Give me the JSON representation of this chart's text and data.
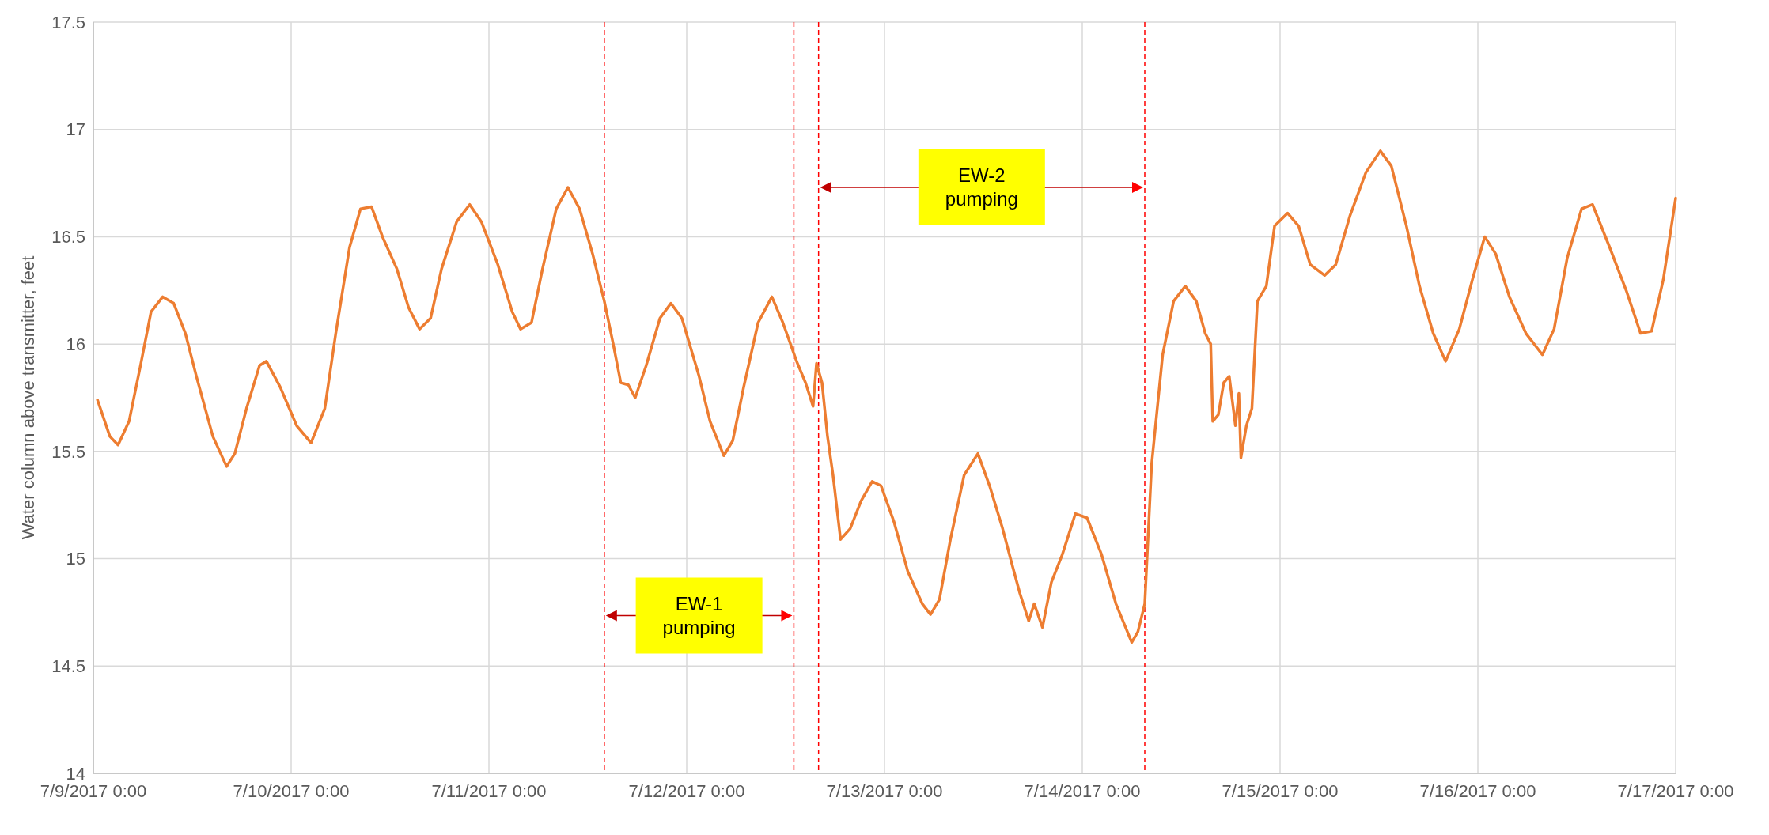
{
  "chart_data": {
    "type": "line",
    "ylabel": "Water column above transmitter, feet",
    "xlim": [
      "2017-07-09T00:00",
      "2017-07-17T00:00"
    ],
    "xticks": [
      {
        "value": "2017-07-09T00:00",
        "label": "7/9/2017 0:00"
      },
      {
        "value": "2017-07-10T00:00",
        "label": "7/10/2017 0:00"
      },
      {
        "value": "2017-07-11T00:00",
        "label": "7/11/2017 0:00"
      },
      {
        "value": "2017-07-12T00:00",
        "label": "7/12/2017 0:00"
      },
      {
        "value": "2017-07-13T00:00",
        "label": "7/13/2017 0:00"
      },
      {
        "value": "2017-07-14T00:00",
        "label": "7/14/2017 0:00"
      },
      {
        "value": "2017-07-15T00:00",
        "label": "7/15/2017 0:00"
      },
      {
        "value": "2017-07-16T00:00",
        "label": "7/16/2017 0:00"
      },
      {
        "value": "2017-07-17T00:00",
        "label": "7/17/2017 0:00"
      }
    ],
    "ylim": [
      14,
      17.5
    ],
    "yticks": [
      14,
      14.5,
      15,
      15.5,
      16,
      16.5,
      17,
      17.5
    ],
    "grid": true,
    "marker": "none",
    "line_style": "solid",
    "x": [
      "2017-07-09T00:30",
      "2017-07-09T02:00",
      "2017-07-09T03:00",
      "2017-07-09T04:20",
      "2017-07-09T05:40",
      "2017-07-09T07:00",
      "2017-07-09T08:25",
      "2017-07-09T09:45",
      "2017-07-09T11:10",
      "2017-07-09T12:30",
      "2017-07-09T14:30",
      "2017-07-09T16:10",
      "2017-07-09T17:10",
      "2017-07-09T18:35",
      "2017-07-09T20:10",
      "2017-07-09T21:00",
      "2017-07-09T22:40",
      "2017-07-10T00:40",
      "2017-07-10T02:25",
      "2017-07-10T04:05",
      "2017-07-10T05:25",
      "2017-07-10T07:05",
      "2017-07-10T08:25",
      "2017-07-10T09:45",
      "2017-07-10T11:05",
      "2017-07-10T12:50",
      "2017-07-10T14:15",
      "2017-07-10T15:35",
      "2017-07-10T16:55",
      "2017-07-10T18:15",
      "2017-07-10T20:05",
      "2017-07-10T21:40",
      "2017-07-10T23:05",
      "2017-07-11T01:05",
      "2017-07-11T02:50",
      "2017-07-11T03:50",
      "2017-07-11T05:10",
      "2017-07-11T06:30",
      "2017-07-11T08:10",
      "2017-07-11T09:35",
      "2017-07-11T11:00",
      "2017-07-11T12:35",
      "2017-07-11T14:00",
      "2017-07-11T15:05",
      "2017-07-11T16:00",
      "2017-07-11T16:55",
      "2017-07-11T17:45",
      "2017-07-11T19:05",
      "2017-07-11T20:45",
      "2017-07-11T22:05",
      "2017-07-11T23:25",
      "2017-07-12T01:30",
      "2017-07-12T02:50",
      "2017-07-12T04:30",
      "2017-07-12T05:35",
      "2017-07-12T06:55",
      "2017-07-12T08:40",
      "2017-07-12T10:20",
      "2017-07-12T11:40",
      "2017-07-12T13:20",
      "2017-07-12T14:25",
      "2017-07-12T15:20",
      "2017-07-12T15:45",
      "2017-07-12T16:25",
      "2017-07-12T17:05",
      "2017-07-12T17:45",
      "2017-07-12T18:40",
      "2017-07-12T19:50",
      "2017-07-12T21:10",
      "2017-07-12T22:30",
      "2017-07-12T23:35",
      "2017-07-13T01:10",
      "2017-07-13T02:50",
      "2017-07-13T04:35",
      "2017-07-13T05:35",
      "2017-07-13T06:40",
      "2017-07-13T08:00",
      "2017-07-13T09:40",
      "2017-07-13T11:20",
      "2017-07-13T12:45",
      "2017-07-13T14:20",
      "2017-07-13T15:30",
      "2017-07-13T16:25",
      "2017-07-13T17:30",
      "2017-07-13T18:10",
      "2017-07-13T19:10",
      "2017-07-13T20:15",
      "2017-07-13T21:35",
      "2017-07-13T23:10",
      "2017-07-14T00:35",
      "2017-07-14T02:20",
      "2017-07-14T04:05",
      "2017-07-14T06:00",
      "2017-07-14T06:45",
      "2017-07-14T07:35",
      "2017-07-14T08:25",
      "2017-07-14T09:45",
      "2017-07-14T11:05",
      "2017-07-14T12:30",
      "2017-07-14T13:50",
      "2017-07-14T14:55",
      "2017-07-14T15:35",
      "2017-07-14T15:50",
      "2017-07-14T16:30",
      "2017-07-14T17:10",
      "2017-07-14T17:50",
      "2017-07-14T18:35",
      "2017-07-14T19:00",
      "2017-07-14T19:15",
      "2017-07-14T19:55",
      "2017-07-14T20:35",
      "2017-07-14T21:15",
      "2017-07-14T22:20",
      "2017-07-14T23:20",
      "2017-07-15T00:55",
      "2017-07-15T02:15",
      "2017-07-15T03:40",
      "2017-07-15T05:25",
      "2017-07-15T06:45",
      "2017-07-15T08:30",
      "2017-07-15T10:25",
      "2017-07-15T12:10",
      "2017-07-15T13:30",
      "2017-07-15T15:20",
      "2017-07-15T16:55",
      "2017-07-15T18:35",
      "2017-07-15T20:05",
      "2017-07-15T21:45",
      "2017-07-15T23:20",
      "2017-07-16T00:50",
      "2017-07-16T02:10",
      "2017-07-16T03:50",
      "2017-07-16T05:50",
      "2017-07-16T07:50",
      "2017-07-16T09:15",
      "2017-07-16T10:50",
      "2017-07-16T12:35",
      "2017-07-16T13:55",
      "2017-07-16T16:00",
      "2017-07-16T18:00",
      "2017-07-16T19:45",
      "2017-07-16T21:05",
      "2017-07-16T22:30",
      "2017-07-17T00:00"
    ],
    "series": [
      {
        "color": "#ed7d31",
        "values": [
          15.74,
          15.57,
          15.53,
          15.64,
          15.89,
          16.15,
          16.22,
          16.19,
          16.05,
          15.85,
          15.57,
          15.43,
          15.49,
          15.7,
          15.9,
          15.92,
          15.8,
          15.62,
          15.54,
          15.7,
          16.05,
          16.45,
          16.63,
          16.64,
          16.5,
          16.35,
          16.17,
          16.07,
          16.12,
          16.35,
          16.57,
          16.65,
          16.57,
          16.37,
          16.15,
          16.07,
          16.1,
          16.35,
          16.63,
          16.73,
          16.63,
          16.42,
          16.2,
          16.0,
          15.82,
          15.81,
          15.75,
          15.9,
          16.12,
          16.19,
          16.12,
          15.85,
          15.64,
          15.48,
          15.55,
          15.8,
          16.1,
          16.22,
          16.1,
          15.92,
          15.82,
          15.71,
          15.91,
          15.82,
          15.57,
          15.39,
          15.09,
          15.14,
          15.27,
          15.36,
          15.34,
          15.17,
          14.94,
          14.79,
          14.74,
          14.81,
          15.09,
          15.39,
          15.49,
          15.34,
          15.14,
          14.97,
          14.84,
          14.71,
          14.79,
          14.68,
          14.89,
          15.02,
          15.21,
          15.19,
          15.02,
          14.79,
          14.61,
          14.66,
          14.79,
          15.44,
          15.95,
          16.2,
          16.27,
          16.2,
          16.05,
          16.0,
          15.64,
          15.67,
          15.82,
          15.85,
          15.62,
          15.77,
          15.47,
          15.62,
          15.7,
          16.2,
          16.27,
          16.55,
          16.61,
          16.55,
          16.37,
          16.32,
          16.37,
          16.6,
          16.8,
          16.9,
          16.83,
          16.55,
          16.27,
          16.05,
          15.92,
          16.07,
          16.3,
          16.5,
          16.42,
          16.22,
          16.05,
          15.95,
          16.07,
          16.4,
          16.63,
          16.65,
          16.45,
          16.25,
          16.05,
          16.06,
          16.3,
          16.68
        ]
      }
    ],
    "ref_lines": [
      {
        "axis": "x",
        "value": "2017-07-11T14:00",
        "color": "#ff0000",
        "line_style": "dashed"
      },
      {
        "axis": "x",
        "value": "2017-07-12T13:00",
        "color": "#ff0000",
        "line_style": "dashed"
      },
      {
        "axis": "x",
        "value": "2017-07-12T16:00",
        "color": "#ff0000",
        "line_style": "dashed"
      },
      {
        "axis": "x",
        "value": "2017-07-14T07:35",
        "color": "#ff0000",
        "line_style": "dashed"
      }
    ],
    "annotations": [
      "EW-1\npumping",
      "EW-2\npumping"
    ]
  }
}
